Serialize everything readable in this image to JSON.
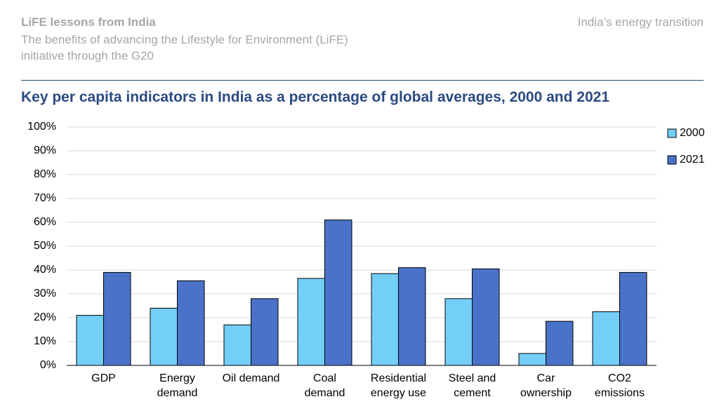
{
  "chart_data": {
    "type": "bar",
    "kicker": "LiFE lessons from India",
    "subtitle": "The benefits of advancing the Lifestyle for Environment (LiFE)\ninitiative through the G20",
    "section": "India’s energy transition",
    "title": "Key per capita indicators in India as a percentage of global averages, 2000 and 2021",
    "categories": [
      "GDP",
      "Energy\ndemand",
      "Oil demand",
      "Coal\ndemand",
      "Residential\nenergy use",
      "Steel and\ncement",
      "Car\nownership",
      "CO2\nemissions"
    ],
    "series": [
      {
        "name": "2000",
        "color": "#73cff7",
        "values": [
          21,
          24,
          17,
          36.5,
          38.5,
          28,
          5,
          22.5
        ]
      },
      {
        "name": "2021",
        "color": "#4a72c8",
        "values": [
          39,
          35.5,
          28,
          61,
          41,
          40.5,
          18.5,
          39
        ]
      }
    ],
    "ylim": [
      0,
      100
    ],
    "yticks": [
      {
        "value": 0,
        "label": "0%"
      },
      {
        "value": 10,
        "label": "10%"
      },
      {
        "value": 20,
        "label": "20%"
      },
      {
        "value": 30,
        "label": "30%"
      },
      {
        "value": 40,
        "label": "40%"
      },
      {
        "value": 50,
        "label": "50%"
      },
      {
        "value": 60,
        "label": "60%"
      },
      {
        "value": 70,
        "label": "70%"
      },
      {
        "value": 80,
        "label": "80%"
      },
      {
        "value": 90,
        "label": "90%"
      },
      {
        "value": 100,
        "label": "100%"
      }
    ],
    "grid": true,
    "legend": "right"
  }
}
